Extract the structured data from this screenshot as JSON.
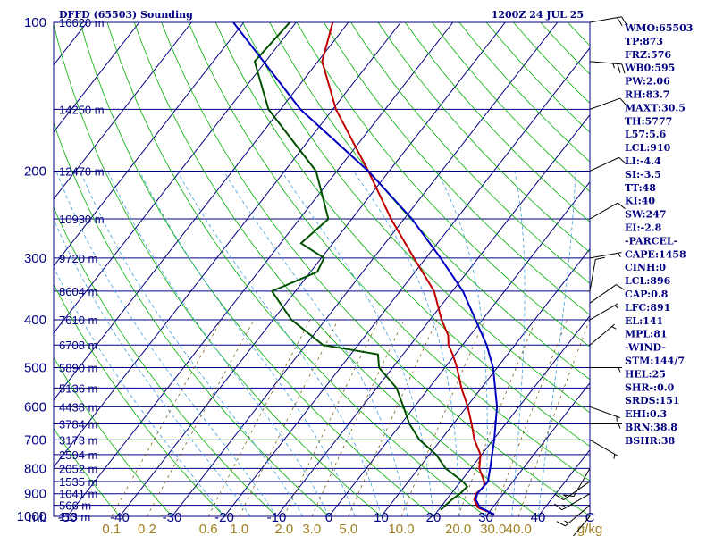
{
  "header": {
    "left": "DFFD (65503) Sounding",
    "right": "1200Z 24 JUL 25"
  },
  "colors": {
    "frame": "#000080",
    "isotherm": "#000080",
    "dry_adiabat": "#00b000",
    "moist_adiabat": "#40a0e0",
    "mixing_ratio": "#806020",
    "temperature": "#c00000",
    "dewpoint": "#005000",
    "parcel": "#0000c0",
    "wind": "#000000"
  },
  "chart_data": {
    "type": "skew-t",
    "ylim": [
      1000,
      100
    ],
    "xlim": [
      -50,
      50
    ],
    "pressure_labels": [
      "100",
      "200",
      "300",
      "400",
      "500",
      "600",
      "700",
      "800",
      "900",
      "1000"
    ],
    "temperature_labels": [
      "-50",
      "-40",
      "-30",
      "-20",
      "-10",
      "0",
      "10",
      "20",
      "30",
      "40",
      "C"
    ],
    "mixing_ratio_labels": [
      {
        "label": "0.1",
        "w": 0.1
      },
      {
        "label": "0.2",
        "w": 0.2
      },
      {
        "label": "0.6",
        "w": 0.6
      },
      {
        "label": "1.0",
        "w": 1.0
      },
      {
        "label": "2.0",
        "w": 2.0
      },
      {
        "label": "3.0",
        "w": 3.0
      },
      {
        "label": "5.0",
        "w": 5.0
      },
      {
        "label": "10.0",
        "w": 10.0
      },
      {
        "label": "20.0",
        "w": 20.0
      },
      {
        "label": "30.0",
        "w": 30.0
      },
      {
        "label": "40.0",
        "w": 40.0
      }
    ],
    "mixing_ratio_unit": "g/kg",
    "pressure_unit": "mb",
    "height_levels": [
      {
        "label": "16620 m",
        "p": 100
      },
      {
        "label": "14250 m",
        "p": 150
      },
      {
        "label": "12470 m",
        "p": 200
      },
      {
        "label": "10930 m",
        "p": 250
      },
      {
        "label": "9720 m",
        "p": 300
      },
      {
        "label": "8604 m",
        "p": 350
      },
      {
        "label": "7610 m",
        "p": 400
      },
      {
        "label": "6708 m",
        "p": 450
      },
      {
        "label": "5890 m",
        "p": 500
      },
      {
        "label": "5136 m",
        "p": 550
      },
      {
        "label": "4438 m",
        "p": 600
      },
      {
        "label": "3784 m",
        "p": 650
      },
      {
        "label": "3173 m",
        "p": 700
      },
      {
        "label": "2594 m",
        "p": 750
      },
      {
        "label": "2052 m",
        "p": 800
      },
      {
        "label": "1535 m",
        "p": 850
      },
      {
        "label": "1041 m",
        "p": 900
      },
      {
        "label": "566 m",
        "p": 950
      },
      {
        "label": "113 m",
        "p": 1000
      }
    ],
    "series": [
      {
        "kind": "temperature",
        "points": [
          {
            "p": 990,
            "t": 31.3
          },
          {
            "p": 960,
            "t": 27.2
          },
          {
            "p": 925,
            "t": 25.3
          },
          {
            "p": 900,
            "t": 24.8
          },
          {
            "p": 870,
            "t": 25.2
          },
          {
            "p": 850,
            "t": 24.5
          },
          {
            "p": 800,
            "t": 21.6
          },
          {
            "p": 750,
            "t": 19.8
          },
          {
            "p": 700,
            "t": 16.4
          },
          {
            "p": 650,
            "t": 13.5
          },
          {
            "p": 600,
            "t": 10.2
          },
          {
            "p": 550,
            "t": 6.2
          },
          {
            "p": 500,
            "t": 2.3
          },
          {
            "p": 470,
            "t": -0.5
          },
          {
            "p": 450,
            "t": -2.7
          },
          {
            "p": 430,
            "t": -4.2
          },
          {
            "p": 400,
            "t": -7.8
          },
          {
            "p": 350,
            "t": -13.5
          },
          {
            "p": 300,
            "t": -22.3
          },
          {
            "p": 250,
            "t": -32.5
          },
          {
            "p": 200,
            "t": -44.0
          },
          {
            "p": 150,
            "t": -59.4
          },
          {
            "p": 120,
            "t": -69.2
          },
          {
            "p": 100,
            "t": -73.0
          }
        ]
      },
      {
        "kind": "dewpoint",
        "points": [
          {
            "p": 970,
            "t": 20.4
          },
          {
            "p": 925,
            "t": 21.0
          },
          {
            "p": 900,
            "t": 21.7
          },
          {
            "p": 870,
            "t": 22.0
          },
          {
            "p": 850,
            "t": 20.4
          },
          {
            "p": 800,
            "t": 15.2
          },
          {
            "p": 750,
            "t": 11.3
          },
          {
            "p": 700,
            "t": 5.9
          },
          {
            "p": 650,
            "t": 1.6
          },
          {
            "p": 600,
            "t": -2.1
          },
          {
            "p": 550,
            "t": -6.2
          },
          {
            "p": 500,
            "t": -12.6
          },
          {
            "p": 470,
            "t": -14.8
          },
          {
            "p": 450,
            "t": -26.7
          },
          {
            "p": 400,
            "t": -36.5
          },
          {
            "p": 350,
            "t": -44.5
          },
          {
            "p": 320,
            "t": -38.7
          },
          {
            "p": 300,
            "t": -39.5
          },
          {
            "p": 280,
            "t": -46.1
          },
          {
            "p": 250,
            "t": -44.5
          },
          {
            "p": 200,
            "t": -54.0
          },
          {
            "p": 150,
            "t": -72.3
          },
          {
            "p": 120,
            "t": -82.1
          },
          {
            "p": 100,
            "t": -81.2
          }
        ]
      },
      {
        "kind": "parcel",
        "points": [
          {
            "p": 990,
            "t": 31.3
          },
          {
            "p": 960,
            "t": 27.6
          },
          {
            "p": 925,
            "t": 25.6
          },
          {
            "p": 900,
            "t": 25.0
          },
          {
            "p": 850,
            "t": 25.2
          },
          {
            "p": 800,
            "t": 23.7
          },
          {
            "p": 700,
            "t": 20.2
          },
          {
            "p": 600,
            "t": 15.8
          },
          {
            "p": 500,
            "t": 9.2
          },
          {
            "p": 450,
            "t": 4.6
          },
          {
            "p": 400,
            "t": -1.3
          },
          {
            "p": 350,
            "t": -8.0
          },
          {
            "p": 300,
            "t": -17.2
          },
          {
            "p": 250,
            "t": -28.5
          },
          {
            "p": 200,
            "t": -44.0
          },
          {
            "p": 150,
            "t": -66.2
          },
          {
            "p": 100,
            "t": -92.0
          }
        ]
      }
    ],
    "wind_barbs": [
      {
        "p": 100,
        "dir": 80,
        "spd": 20
      },
      {
        "p": 120,
        "dir": 95,
        "spd": 25
      },
      {
        "p": 150,
        "dir": 70,
        "spd": 10
      },
      {
        "p": 200,
        "dir": 65,
        "spd": 10
      },
      {
        "p": 250,
        "dir": 60,
        "spd": 10
      },
      {
        "p": 300,
        "dir": 80,
        "spd": 5
      },
      {
        "p": 350,
        "dir": 10,
        "spd": 10
      },
      {
        "p": 370,
        "dir": 55,
        "spd": 10
      },
      {
        "p": 400,
        "dir": 60,
        "spd": 5
      },
      {
        "p": 450,
        "dir": 50,
        "spd": 5
      },
      {
        "p": 500,
        "dir": 90,
        "spd": 5
      },
      {
        "p": 600,
        "dir": 110,
        "spd": 5
      },
      {
        "p": 650,
        "dir": 90,
        "spd": 5
      },
      {
        "p": 700,
        "dir": 120,
        "spd": 5
      },
      {
        "p": 800,
        "dir": 210,
        "spd": 10
      },
      {
        "p": 850,
        "dir": 235,
        "spd": 15
      },
      {
        "p": 900,
        "dir": 240,
        "spd": 15
      },
      {
        "p": 950,
        "dir": 230,
        "spd": 15
      },
      {
        "p": 1000,
        "dir": 220,
        "spd": 10
      }
    ]
  },
  "side_panel": {
    "items": [
      "WMO:65503",
      "TP:873",
      "FRZ:576",
      "WB0:595",
      "PW:2.06",
      "RH:83.7",
      "MAXT:30.5",
      "TH:5777",
      "L57:5.6",
      "LCL:910",
      "LI:-4.4",
      "SI:-3.5",
      "TT:48",
      "KI:40",
      "SW:247",
      "EI:-2.8",
      "-PARCEL-",
      "CAPE:1458",
      "CINH:0",
      "LCL:896",
      "CAP:0.8",
      "LFC:891",
      "EL:141",
      "MPL:81",
      "-WIND-",
      "STM:144/7",
      "HEL:25",
      "SHR-:0.0",
      "SRDS:151",
      "EHI:0.3",
      "BRN:38.8",
      "BSHR:38"
    ]
  }
}
